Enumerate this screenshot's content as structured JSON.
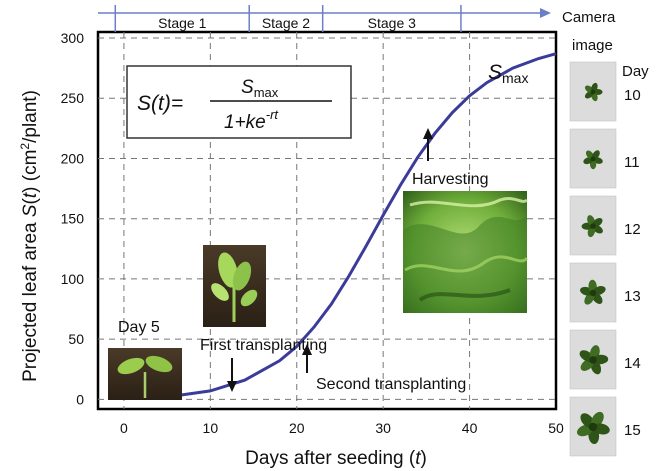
{
  "chart_data": {
    "type": "line",
    "xlabel_parts": [
      "Days after seeding (",
      "t",
      ")"
    ],
    "ylabel_parts": [
      "Projected leaf area ",
      "S",
      "(",
      "t",
      ") (cm",
      "2",
      "/plant)"
    ],
    "xlim": [
      -3,
      50
    ],
    "ylim": [
      -8,
      305
    ],
    "xticks": [
      0,
      10,
      20,
      30,
      40,
      50
    ],
    "xtick_labels": [
      "0",
      "10",
      "20",
      "30",
      "40",
      "50"
    ],
    "yticks": [
      0,
      50,
      100,
      150,
      200,
      250,
      300
    ],
    "ytick_labels": [
      "0",
      "50",
      "100",
      "150",
      "200",
      "250",
      "300"
    ],
    "grid": true,
    "curve_color": "#3b3b9a",
    "series": [
      {
        "x": [
          0,
          5,
          10,
          14,
          18,
          20,
          22,
          24,
          26,
          28,
          30,
          32,
          34,
          36,
          38,
          40,
          42,
          45,
          48,
          50
        ],
        "values": [
          1,
          2,
          7,
          16,
          32,
          44,
          60,
          79,
          102,
          127,
          153,
          178,
          201,
          221,
          238,
          252,
          263,
          275,
          283,
          287
        ]
      }
    ],
    "stages": [
      {
        "label": "Stage 1",
        "from": -1,
        "to": 14.5
      },
      {
        "label": "Stage 2",
        "from": 14.5,
        "to": 23
      },
      {
        "label": "Stage 3",
        "from": 23,
        "to": 39
      }
    ],
    "formula": {
      "lhs": "S(t)=",
      "numerator": "S",
      "numerator_sub": "max",
      "denominator": "1+ke",
      "denominator_sup": "-rt"
    },
    "annotations": [
      {
        "text": "S",
        "sub": "max"
      },
      {
        "text": "Harvesting",
        "x": 36
      },
      {
        "text": "First transplanting",
        "x": 14
      },
      {
        "text": "Second transplanting",
        "x": 22.5
      },
      {
        "text": "Day 5"
      }
    ]
  },
  "camera": {
    "title_line1": "Camera",
    "title_line2": "image",
    "day_header": "Day",
    "days": [
      "10",
      "11",
      "12",
      "13",
      "14",
      "15"
    ]
  }
}
